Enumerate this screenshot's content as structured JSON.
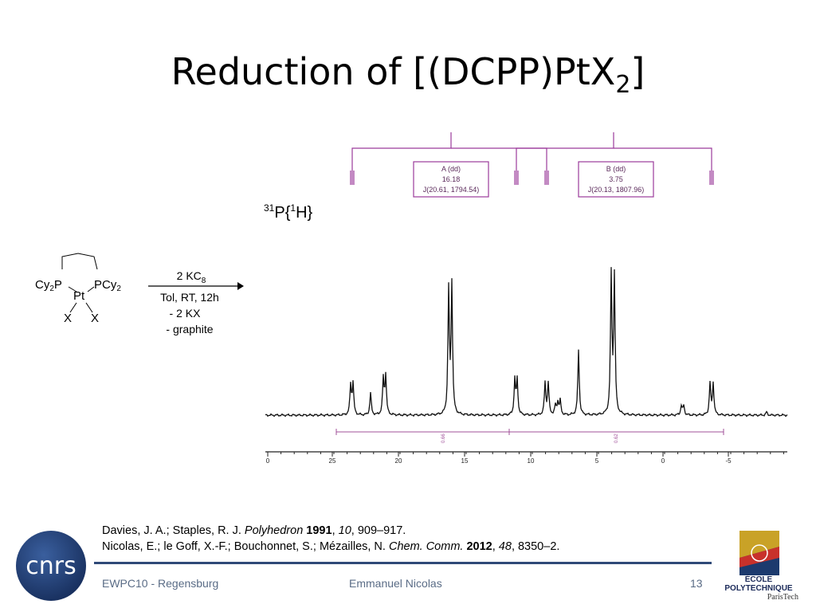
{
  "slide": {
    "title_main": "Reduction of [(DCPP)PtX",
    "title_sub": "2",
    "title_end": "]"
  },
  "nmr": {
    "nucleus_sup1": "31",
    "nucleus_mid": "P{",
    "nucleus_sup2": "1",
    "nucleus_end": "H}",
    "box_a": {
      "line1": "A (dd)",
      "line2": "16.18",
      "line3": "J(20.61, 1794.54)"
    },
    "box_b": {
      "line1": "B (dd)",
      "line2": "3.75",
      "line3": "J(20.13, 1807.96)"
    },
    "integral_a": "0.66",
    "integral_b": "0.62",
    "axis_ticks": [
      "0",
      "25",
      "20",
      "15",
      "10",
      "5",
      "0",
      "-5"
    ],
    "colors": {
      "multiplet": "#9b3b9b",
      "integral": "#a0509a",
      "trace": "#111111"
    }
  },
  "scheme": {
    "reactant_left": "Cy",
    "reactant_left_sub": "2",
    "reactant_left_p": "P",
    "reactant_right": "PCy",
    "reactant_right_sub": "2",
    "metal": "Pt",
    "ligand1": "X",
    "ligand2": "X",
    "reagent": "2 KC",
    "reagent_sub": "8",
    "conditions": "Tol, RT, 12h",
    "byproduct1": "- 2 KX",
    "byproduct2": "- graphite"
  },
  "references": {
    "ref1_authors": "Davies, J. A.; Staples, R. J. ",
    "ref1_journal": "Polyhedron",
    "ref1_year": "1991",
    "ref1_volume": "10",
    "ref1_pages": ", 909–917.",
    "ref2_authors": "Nicolas, E.; le Goff, X.-F.; Bouchonnet, S.; Mézailles, N. ",
    "ref2_journal": "Chem. Comm.",
    "ref2_year": "2012",
    "ref2_volume": "48",
    "ref2_pages": ", 8350–2."
  },
  "footer": {
    "event": "EWPC10 - Regensburg",
    "author": "Emmanuel Nicolas",
    "page": "13",
    "logo_left": "cnrs",
    "logo_right_line1": "ÉCOLE",
    "logo_right_line2": "POLYTECHNIQUE",
    "logo_right_line3": "ParisTech",
    "footer_color": "#2f4a78"
  }
}
